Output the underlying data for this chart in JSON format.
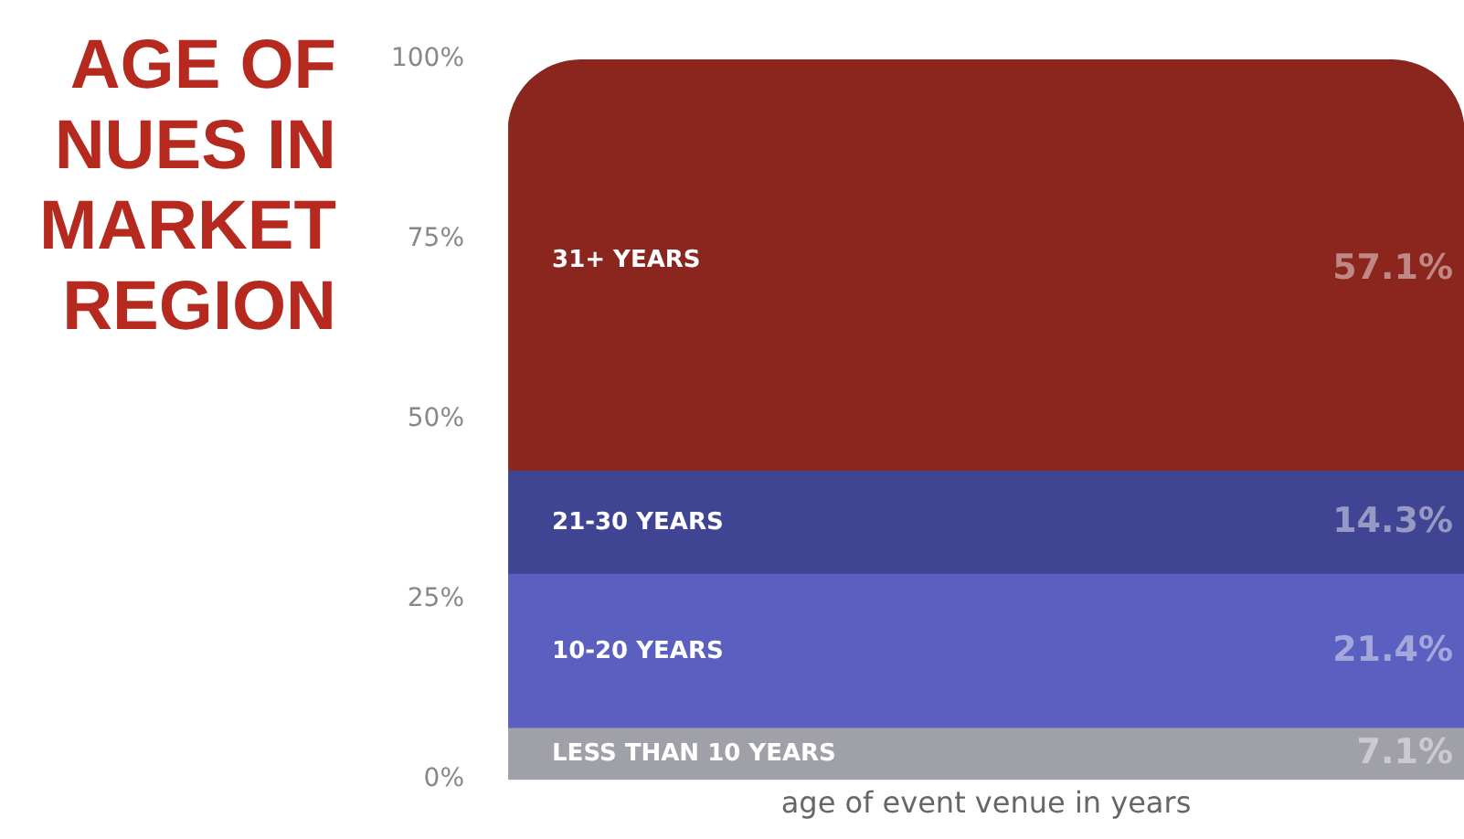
{
  "chart_data": {
    "type": "bar",
    "stacked": true,
    "title": "AGE OF NUES IN MARKET REGION",
    "xlabel": "age of event venue in years",
    "categories": [
      null
    ],
    "series": [
      {
        "name": "LESS THAN 10 YEARS",
        "color": "#a0a0a8",
        "values": [
          7.1
        ],
        "value_labels": [
          "7.1%"
        ]
      },
      {
        "name": "10-20 YEARS",
        "color": "#5a5fc0",
        "values": [
          21.4
        ],
        "value_labels": [
          "21.4%"
        ]
      },
      {
        "name": "21-30 YEARS",
        "color": "#3f4592",
        "values": [
          14.3
        ],
        "value_labels": [
          "14.3%"
        ]
      },
      {
        "name": "31+ YEARS",
        "color": "#8b261f",
        "values": [
          57.1
        ],
        "value_labels": [
          "57.1%"
        ]
      }
    ],
    "ylim": [
      0,
      100
    ],
    "yticks": [
      {
        "value": 0,
        "label": "0%"
      },
      {
        "value": 25,
        "label": "25%"
      },
      {
        "value": 50,
        "label": "50%"
      },
      {
        "value": 75,
        "label": "75%"
      },
      {
        "value": 100,
        "label": "100%"
      }
    ],
    "grid": false,
    "legend": false
  }
}
